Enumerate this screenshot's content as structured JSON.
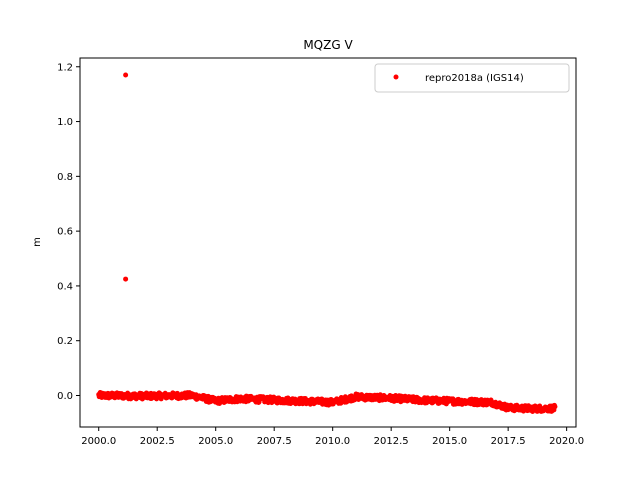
{
  "chart_data": {
    "type": "scatter",
    "title": "MQZG V",
    "xlabel": "",
    "ylabel": "m",
    "xlim": [
      1999.2,
      2020.4
    ],
    "ylim": [
      -0.115,
      1.232
    ],
    "xticks": [
      "2000.0",
      "2002.5",
      "2005.0",
      "2007.5",
      "2010.0",
      "2012.5",
      "2015.0",
      "2017.5",
      "2020.0"
    ],
    "xtick_values": [
      2000.0,
      2002.5,
      2005.0,
      2007.5,
      2010.0,
      2012.5,
      2015.0,
      2017.5,
      2020.0
    ],
    "yticks": [
      "0.0",
      "0.2",
      "0.4",
      "0.6",
      "0.8",
      "1.0",
      "1.2"
    ],
    "ytick_values": [
      0.0,
      0.2,
      0.4,
      0.6,
      0.8,
      1.0,
      1.2
    ],
    "grid": false,
    "legend_position": "top-right",
    "color": "#ff0000",
    "series": [
      {
        "name": "repro2018a (IGS14)",
        "x_start": 2000.0,
        "x_end": 2019.5,
        "outliers": [
          {
            "x": 2001.15,
            "y": 1.17
          },
          {
            "x": 2001.15,
            "y": 0.425
          }
        ],
        "trend": [
          {
            "x": 2000.0,
            "y": 0.0
          },
          {
            "x": 2002.0,
            "y": -0.002
          },
          {
            "x": 2004.0,
            "y": 0.0
          },
          {
            "x": 2005.0,
            "y": -0.02
          },
          {
            "x": 2006.0,
            "y": -0.012
          },
          {
            "x": 2008.0,
            "y": -0.018
          },
          {
            "x": 2010.0,
            "y": -0.025
          },
          {
            "x": 2011.0,
            "y": -0.005
          },
          {
            "x": 2012.5,
            "y": -0.01
          },
          {
            "x": 2014.0,
            "y": -0.018
          },
          {
            "x": 2015.5,
            "y": -0.022
          },
          {
            "x": 2016.8,
            "y": -0.025
          },
          {
            "x": 2017.5,
            "y": -0.045
          },
          {
            "x": 2018.5,
            "y": -0.048
          },
          {
            "x": 2019.5,
            "y": -0.047
          }
        ]
      }
    ]
  }
}
